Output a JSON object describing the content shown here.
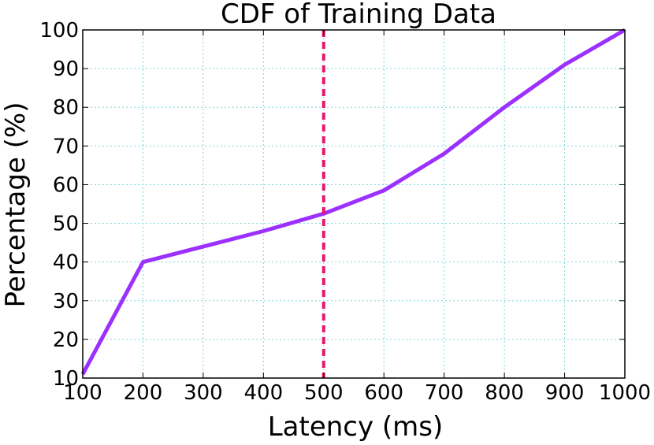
{
  "chart_data": {
    "type": "line",
    "title": "CDF of Training Data",
    "xlabel": "Latency (ms)",
    "ylabel": "Percentage (%)",
    "xlim": [
      100,
      1000
    ],
    "ylim": [
      10,
      100
    ],
    "xticks": [
      100,
      200,
      300,
      400,
      500,
      600,
      700,
      800,
      900,
      1000
    ],
    "yticks": [
      10,
      20,
      30,
      40,
      50,
      60,
      70,
      80,
      90,
      100
    ],
    "grid": true,
    "series": [
      {
        "color": "#9b30ff",
        "x": [
          100,
          200,
          300,
          400,
          500,
          600,
          700,
          800,
          900,
          1000
        ],
        "y": [
          11,
          40,
          44,
          48,
          52.5,
          58.5,
          68,
          80,
          91,
          100
        ]
      }
    ],
    "annotations": [
      {
        "type": "vline",
        "x": 500,
        "color": "#e8176e",
        "style": "dashed"
      }
    ],
    "colors": {
      "grid": "#7ed6d6",
      "axis": "#000000"
    }
  }
}
